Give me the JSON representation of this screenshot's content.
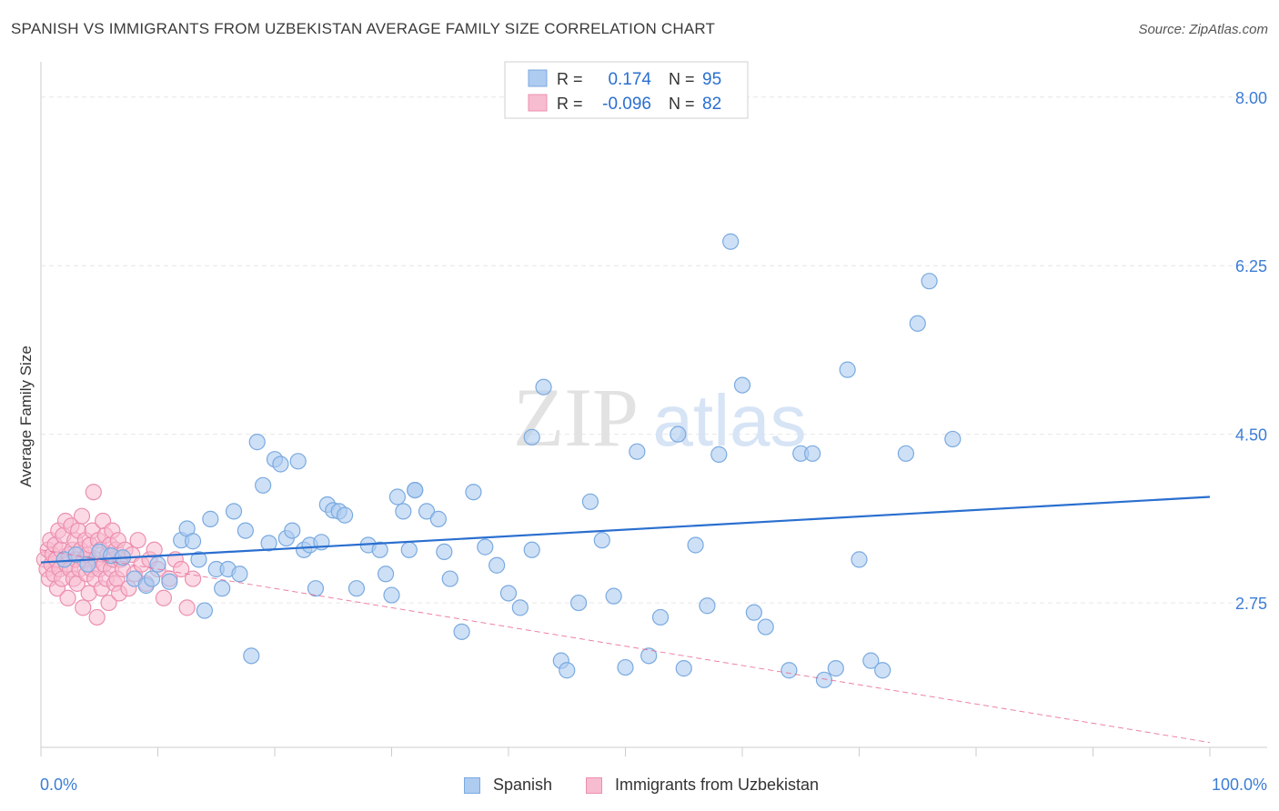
{
  "header": {
    "title": "SPANISH VS IMMIGRANTS FROM UZBEKISTAN AVERAGE FAMILY SIZE CORRELATION CHART",
    "source": "Source: ZipAtlas.com"
  },
  "watermark": {
    "zip": "ZIP",
    "atlas": "atlas"
  },
  "legend_top": {
    "rows": [
      {
        "r_label": "R =",
        "r_value": "0.174",
        "n_label": "N =",
        "n_value": "95"
      },
      {
        "r_label": "R =",
        "r_value": "-0.096",
        "n_label": "N =",
        "n_value": "82"
      }
    ]
  },
  "legend_bottom": {
    "spanish": "Spanish",
    "uzbekistan": "Immigrants from Uzbekistan"
  },
  "colors": {
    "spanish_fill": "#aecbf0",
    "spanish_stroke": "#7aaae0",
    "spanish_line": "#2a6fcf",
    "uzb_fill": "#f7bcd0",
    "uzb_stroke": "#ec8fb0",
    "uzb_line": "#e8638f",
    "axis_label": "#3c7dd6",
    "grid": "#e6e6e6"
  },
  "chart_data": {
    "type": "scatter",
    "title": "SPANISH VS IMMIGRANTS FROM UZBEKISTAN AVERAGE FAMILY SIZE CORRELATION CHART",
    "xlabel": "",
    "ylabel": "Average Family Size",
    "xlim": [
      0,
      100
    ],
    "ylim": [
      1.25,
      8.3
    ],
    "x_tick_labels": [
      "0.0%",
      "100.0%"
    ],
    "y_ticks": [
      2.75,
      4.5,
      6.25,
      8.0
    ],
    "y_tick_labels": [
      "2.75",
      "4.50",
      "6.25",
      "8.00"
    ],
    "series": [
      {
        "name": "Spanish",
        "R": 0.174,
        "N": 95,
        "trend": {
          "x": [
            0,
            100
          ],
          "y": [
            3.17,
            3.85
          ]
        },
        "points": [
          [
            2,
            3.2
          ],
          [
            3,
            3.25
          ],
          [
            4,
            3.15
          ],
          [
            5,
            3.28
          ],
          [
            6,
            3.24
          ],
          [
            7,
            3.22
          ],
          [
            8,
            3.0
          ],
          [
            9,
            2.93
          ],
          [
            9.5,
            3.0
          ],
          [
            10,
            3.15
          ],
          [
            11,
            2.97
          ],
          [
            12,
            3.4
          ],
          [
            12.5,
            3.52
          ],
          [
            13,
            3.39
          ],
          [
            13.5,
            3.2
          ],
          [
            14,
            2.67
          ],
          [
            14.5,
            3.62
          ],
          [
            15,
            3.1
          ],
          [
            15.5,
            2.9
          ],
          [
            16,
            3.1
          ],
          [
            16.5,
            3.7
          ],
          [
            17,
            3.05
          ],
          [
            17.5,
            3.5
          ],
          [
            18,
            2.2
          ],
          [
            18.5,
            4.42
          ],
          [
            19,
            3.97
          ],
          [
            19.5,
            3.37
          ],
          [
            20,
            4.24
          ],
          [
            20.5,
            4.19
          ],
          [
            21,
            3.42
          ],
          [
            21.5,
            3.5
          ],
          [
            22,
            4.22
          ],
          [
            22.5,
            3.3
          ],
          [
            23,
            3.35
          ],
          [
            23.5,
            2.9
          ],
          [
            24,
            3.38
          ],
          [
            24.5,
            3.77
          ],
          [
            25,
            3.71
          ],
          [
            25.5,
            3.7
          ],
          [
            26,
            3.66
          ],
          [
            27,
            2.9
          ],
          [
            28,
            3.35
          ],
          [
            29,
            3.3
          ],
          [
            29.5,
            3.05
          ],
          [
            30,
            2.83
          ],
          [
            30.5,
            3.85
          ],
          [
            31,
            3.7
          ],
          [
            31.5,
            3.3
          ],
          [
            32,
            3.92
          ],
          [
            32,
            3.92
          ],
          [
            33,
            3.7
          ],
          [
            34,
            3.62
          ],
          [
            34.5,
            3.28
          ],
          [
            35,
            3.0
          ],
          [
            36,
            2.45
          ],
          [
            37,
            3.9
          ],
          [
            38,
            3.33
          ],
          [
            39,
            3.14
          ],
          [
            40,
            2.85
          ],
          [
            41,
            2.7
          ],
          [
            42,
            3.3
          ],
          [
            42,
            4.47
          ],
          [
            43,
            4.99
          ],
          [
            44.5,
            2.15
          ],
          [
            45,
            2.05
          ],
          [
            46,
            2.75
          ],
          [
            47,
            3.8
          ],
          [
            48,
            3.4
          ],
          [
            49,
            2.82
          ],
          [
            50,
            2.08
          ],
          [
            51,
            4.32
          ],
          [
            52,
            2.2
          ],
          [
            53,
            2.6
          ],
          [
            54.5,
            4.5
          ],
          [
            55,
            2.07
          ],
          [
            56,
            3.35
          ],
          [
            57,
            2.72
          ],
          [
            58,
            4.29
          ],
          [
            59,
            6.5
          ],
          [
            60,
            5.01
          ],
          [
            61,
            2.65
          ],
          [
            62,
            2.5
          ],
          [
            64,
            2.05
          ],
          [
            65,
            4.3
          ],
          [
            66,
            4.3
          ],
          [
            67,
            1.95
          ],
          [
            68,
            2.07
          ],
          [
            69,
            5.17
          ],
          [
            70,
            3.2
          ],
          [
            71,
            2.15
          ],
          [
            72,
            2.05
          ],
          [
            74,
            4.3
          ],
          [
            75,
            5.65
          ],
          [
            76,
            6.09
          ],
          [
            78,
            4.45
          ]
        ]
      },
      {
        "name": "Immigrants from Uzbekistan",
        "R": -0.096,
        "N": 82,
        "trend": {
          "x": [
            0,
            100
          ],
          "y": [
            3.3,
            1.3
          ]
        },
        "points": [
          [
            0.3,
            3.2
          ],
          [
            0.5,
            3.1
          ],
          [
            0.6,
            3.3
          ],
          [
            0.7,
            3.0
          ],
          [
            0.8,
            3.4
          ],
          [
            0.9,
            3.15
          ],
          [
            1.0,
            3.25
          ],
          [
            1.1,
            3.05
          ],
          [
            1.2,
            3.35
          ],
          [
            1.3,
            3.2
          ],
          [
            1.4,
            2.9
          ],
          [
            1.5,
            3.5
          ],
          [
            1.6,
            3.1
          ],
          [
            1.7,
            3.3
          ],
          [
            1.8,
            3.0
          ],
          [
            1.9,
            3.45
          ],
          [
            2.0,
            3.2
          ],
          [
            2.1,
            3.6
          ],
          [
            2.2,
            3.15
          ],
          [
            2.3,
            2.8
          ],
          [
            2.4,
            3.25
          ],
          [
            2.5,
            3.1
          ],
          [
            2.6,
            3.55
          ],
          [
            2.7,
            3.3
          ],
          [
            2.8,
            3.0
          ],
          [
            2.9,
            3.4
          ],
          [
            3.0,
            3.2
          ],
          [
            3.1,
            2.95
          ],
          [
            3.2,
            3.5
          ],
          [
            3.3,
            3.1
          ],
          [
            3.4,
            3.3
          ],
          [
            3.5,
            3.65
          ],
          [
            3.6,
            2.7
          ],
          [
            3.7,
            3.2
          ],
          [
            3.8,
            3.4
          ],
          [
            3.9,
            3.05
          ],
          [
            4.0,
            3.25
          ],
          [
            4.1,
            2.85
          ],
          [
            4.2,
            3.35
          ],
          [
            4.3,
            3.1
          ],
          [
            4.4,
            3.5
          ],
          [
            4.5,
            3.9
          ],
          [
            4.6,
            3.0
          ],
          [
            4.7,
            3.2
          ],
          [
            4.8,
            2.6
          ],
          [
            4.9,
            3.4
          ],
          [
            5.0,
            3.1
          ],
          [
            5.1,
            3.3
          ],
          [
            5.2,
            2.9
          ],
          [
            5.3,
            3.6
          ],
          [
            5.4,
            3.15
          ],
          [
            5.5,
            3.45
          ],
          [
            5.6,
            3.0
          ],
          [
            5.7,
            3.25
          ],
          [
            5.8,
            2.75
          ],
          [
            5.9,
            3.35
          ],
          [
            6.0,
            3.1
          ],
          [
            6.1,
            3.5
          ],
          [
            6.2,
            3.2
          ],
          [
            6.3,
            2.95
          ],
          [
            6.4,
            3.3
          ],
          [
            6.5,
            3.0
          ],
          [
            6.6,
            3.4
          ],
          [
            6.7,
            2.85
          ],
          [
            6.8,
            3.2
          ],
          [
            7.0,
            3.1
          ],
          [
            7.2,
            3.3
          ],
          [
            7.5,
            2.9
          ],
          [
            7.8,
            3.25
          ],
          [
            8.0,
            3.05
          ],
          [
            8.3,
            3.4
          ],
          [
            8.6,
            3.15
          ],
          [
            9.0,
            2.95
          ],
          [
            9.3,
            3.2
          ],
          [
            9.7,
            3.3
          ],
          [
            10.0,
            3.1
          ],
          [
            10.5,
            2.8
          ],
          [
            11.0,
            3.0
          ],
          [
            11.5,
            3.2
          ],
          [
            12.0,
            3.1
          ],
          [
            12.5,
            2.7
          ],
          [
            13.0,
            3.0
          ]
        ]
      }
    ]
  }
}
